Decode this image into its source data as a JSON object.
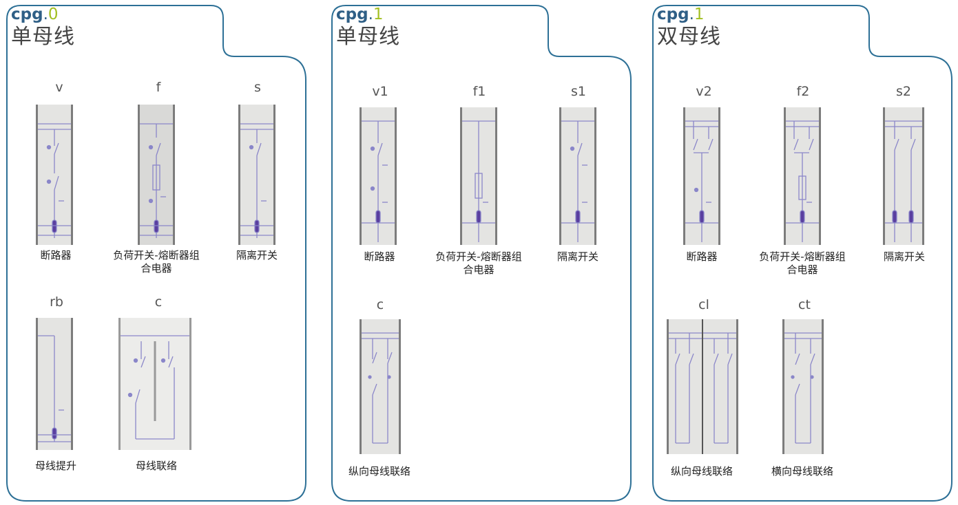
{
  "colors": {
    "frame": "#2d7096",
    "code": "#2f5f86",
    "version": "#a2bf21",
    "symbol": "#8a86c9"
  },
  "panels": [
    {
      "code": "cpg",
      "dot": ".",
      "version": "0",
      "name": "单母线",
      "items": [
        {
          "code": "v",
          "caption": "断路器"
        },
        {
          "code": "f",
          "caption": "负荷开关-熔断器组合电器"
        },
        {
          "code": "s",
          "caption": "隔离开关"
        },
        {
          "code": "rb",
          "caption": "母线提升"
        },
        {
          "code": "c",
          "caption": "母线联络"
        }
      ]
    },
    {
      "code": "cpg",
      "dot": ".",
      "version": "1",
      "name": "单母线",
      "items": [
        {
          "code": "v1",
          "caption": "断路器"
        },
        {
          "code": "f1",
          "caption": "负荷开关-熔断器组合电器"
        },
        {
          "code": "s1",
          "caption": "隔离开关"
        },
        {
          "code": "c",
          "caption": "纵向母线联络"
        }
      ]
    },
    {
      "code": "cpg",
      "dot": ".",
      "version": "1",
      "name": "双母线",
      "items": [
        {
          "code": "v2",
          "caption": "断路器"
        },
        {
          "code": "f2",
          "caption": "负荷开关-熔断器组合电器"
        },
        {
          "code": "s2",
          "caption": "隔离开关"
        },
        {
          "code": "cl",
          "caption": "纵向母线联络"
        },
        {
          "code": "ct",
          "caption": "横向母线联络"
        }
      ]
    }
  ]
}
